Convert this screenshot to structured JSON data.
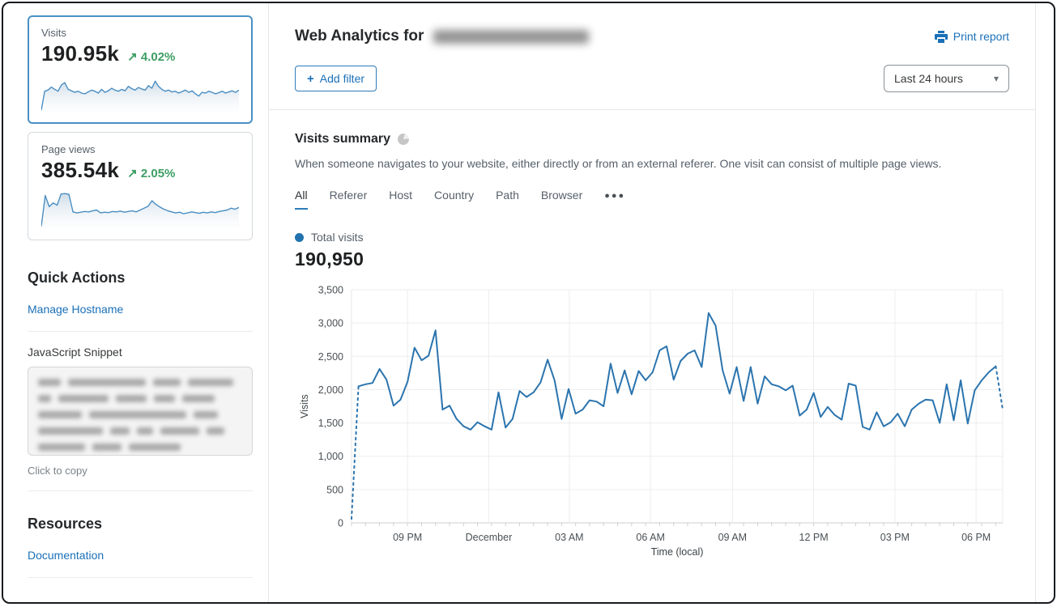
{
  "icons": {
    "trend_up": "↗",
    "caret_down": "▾",
    "ellipsis": "●●●",
    "plus": "+"
  },
  "colors": {
    "accent_blue": "#1a70b8",
    "chart_line": "#2b74ae",
    "positive_green": "#3d9e63",
    "selected_card_border": "#4a90c4"
  },
  "sidebar": {
    "cards": [
      {
        "label": "Visits",
        "value": "190.95k",
        "trend": "4.02%",
        "trend_direction": "up",
        "selected": true,
        "spark": [
          4,
          55,
          58,
          66,
          60,
          55,
          72,
          78,
          60,
          56,
          52,
          55,
          50,
          48,
          53,
          58,
          55,
          50,
          60,
          52,
          56,
          63,
          58,
          55,
          60,
          56,
          68,
          62,
          58,
          65,
          61,
          58,
          70,
          63,
          82,
          68,
          60,
          55,
          58,
          53,
          55,
          50,
          54,
          58,
          52,
          56,
          48,
          42,
          52,
          50,
          55,
          52,
          48,
          51,
          55,
          50,
          53,
          56,
          52,
          58
        ]
      },
      {
        "label": "Page views",
        "value": "385.54k",
        "trend": "2.05%",
        "trend_direction": "up",
        "selected": false,
        "spark": [
          5,
          88,
          58,
          68,
          62,
          92,
          93,
          91,
          44,
          41,
          43,
          45,
          44,
          47,
          49,
          41,
          43,
          42,
          45,
          44,
          46,
          43,
          45,
          47,
          44,
          49,
          54,
          59,
          74,
          64,
          57,
          51,
          47,
          44,
          41,
          43,
          39,
          41,
          44,
          42,
          40,
          43,
          41,
          44,
          42,
          45,
          47,
          49,
          54,
          51,
          56
        ]
      }
    ],
    "quick_actions": {
      "title": "Quick Actions",
      "manage_hostname_label": "Manage Hostname",
      "snippet_label": "JavaScript Snippet",
      "copy_hint": "Click to copy"
    },
    "resources": {
      "title": "Resources",
      "documentation_label": "Documentation"
    }
  },
  "header": {
    "title_prefix": "Web Analytics for",
    "print_label": "Print report",
    "add_filter_label": "Add filter",
    "time_range": "Last 24 hours"
  },
  "summary": {
    "title": "Visits summary",
    "description": "When someone navigates to your website, either directly or from an external referer. One visit can consist of multiple page views.",
    "tabs": [
      "All",
      "Referer",
      "Host",
      "Country",
      "Path",
      "Browser"
    ],
    "active_tab": "All",
    "legend_label": "Total visits",
    "total_value": "190,950"
  },
  "chart_data": {
    "type": "line",
    "title": "Total visits",
    "xlabel": "Time (local)",
    "ylabel": "Visits",
    "ylim": [
      0,
      3500
    ],
    "y_ticks": [
      0,
      500,
      1000,
      1500,
      2000,
      2500,
      3000,
      3500
    ],
    "y_tick_labels": [
      "0",
      "500",
      "1,000",
      "1,500",
      "2,000",
      "2,500",
      "3,000",
      "3,500"
    ],
    "x_tick_labels": [
      "09 PM",
      "December",
      "03 AM",
      "06 AM",
      "09 AM",
      "12 PM",
      "03 PM",
      "06 PM"
    ],
    "x_tick_positions": [
      8,
      19.6,
      31.1,
      42.7,
      54.4,
      66,
      77.6,
      89.2
    ],
    "interval_minutes": 15,
    "grid": true,
    "legend_position": "top-left",
    "line_color": "#2b74ae",
    "dashed_head_points": 2,
    "dashed_tail_points": 2,
    "values": [
      60,
      2050,
      2080,
      2100,
      2310,
      2150,
      1760,
      1850,
      2120,
      2630,
      2440,
      2510,
      2890,
      1700,
      1760,
      1560,
      1450,
      1400,
      1510,
      1450,
      1400,
      1960,
      1430,
      1560,
      1980,
      1890,
      1960,
      2110,
      2450,
      2140,
      1560,
      2010,
      1640,
      1700,
      1840,
      1820,
      1750,
      2390,
      1950,
      2290,
      1930,
      2280,
      2140,
      2260,
      2590,
      2650,
      2150,
      2430,
      2540,
      2590,
      2340,
      3150,
      2960,
      2290,
      1940,
      2340,
      1830,
      2340,
      1790,
      2200,
      2080,
      2050,
      1990,
      2060,
      1610,
      1700,
      1950,
      1590,
      1740,
      1620,
      1550,
      2090,
      2060,
      1440,
      1400,
      1660,
      1450,
      1510,
      1640,
      1450,
      1700,
      1790,
      1850,
      1840,
      1500,
      2080,
      1540,
      2140,
      1490,
      1990,
      2140,
      2260,
      2350,
      1700
    ]
  }
}
